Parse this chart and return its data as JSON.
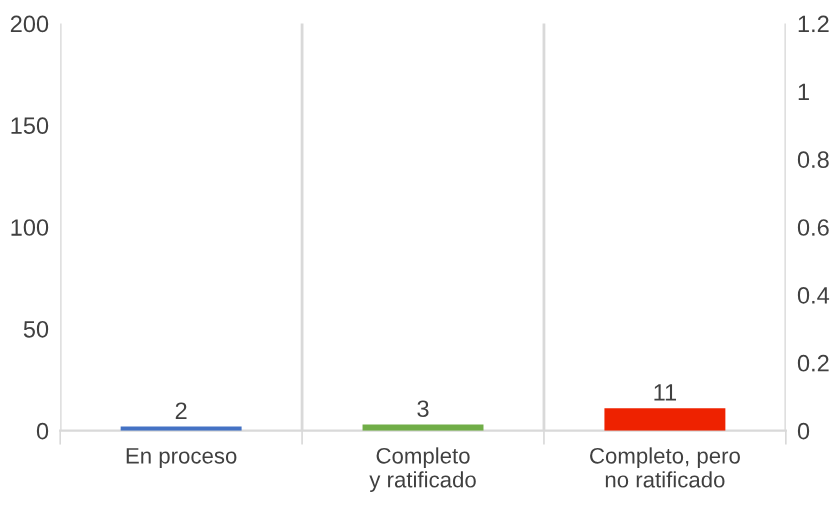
{
  "chart_data": {
    "type": "bar",
    "categories": [
      "En proceso",
      "Completo\ny ratificado",
      "Completo, pero\nno ratificado"
    ],
    "values": [
      2,
      3,
      11
    ],
    "colors": [
      "#4472c4",
      "#70ad47",
      "#ee2200"
    ],
    "ylim": [
      0,
      200
    ],
    "yticks": [
      0,
      50,
      100,
      150,
      200
    ],
    "y2lim": [
      0,
      1.2
    ],
    "y2ticks": [
      0,
      0.2,
      0.4,
      0.6,
      0.8,
      1,
      1.2
    ],
    "data_labels": true,
    "grid": "x",
    "legend": false
  }
}
